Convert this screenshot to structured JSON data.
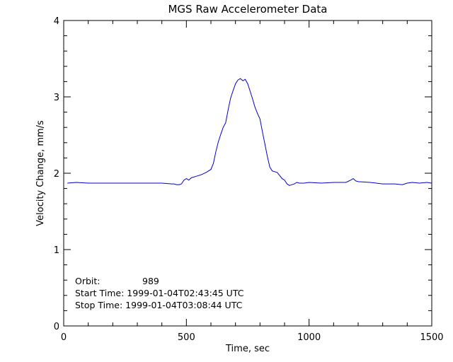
{
  "chart_data": {
    "type": "line",
    "title": "MGS Raw Accelerometer Data",
    "xlabel": "Time, sec",
    "ylabel": "Velocity Change, mm/s",
    "xlim": [
      0,
      1500
    ],
    "ylim": [
      0,
      4
    ],
    "xticks": [
      "0",
      "500",
      "1000",
      "1500"
    ],
    "yticks": [
      "0",
      "1",
      "2",
      "3",
      "4"
    ],
    "grid": false,
    "legend": "none",
    "colors": {
      "series": "#0000cc",
      "axes": "#000000"
    },
    "series": [
      {
        "x": [
          15,
          50,
          100,
          150,
          200,
          250,
          300,
          350,
          400,
          440,
          450,
          460,
          470,
          480,
          490,
          500,
          510,
          520,
          540,
          560,
          580,
          600,
          610,
          620,
          630,
          640,
          650,
          660,
          670,
          680,
          690,
          700,
          710,
          720,
          730,
          740,
          750,
          760,
          770,
          780,
          790,
          800,
          810,
          820,
          830,
          840,
          850,
          860,
          870,
          880,
          890,
          900,
          910,
          920,
          930,
          940,
          950,
          960,
          980,
          1000,
          1050,
          1100,
          1150,
          1170,
          1180,
          1190,
          1200,
          1250,
          1300,
          1320,
          1350,
          1380,
          1400,
          1420,
          1450,
          1480,
          1500
        ],
        "y": [
          1.87,
          1.88,
          1.87,
          1.87,
          1.87,
          1.87,
          1.87,
          1.87,
          1.87,
          1.86,
          1.86,
          1.85,
          1.85,
          1.86,
          1.91,
          1.93,
          1.91,
          1.94,
          1.96,
          1.98,
          2.01,
          2.05,
          2.13,
          2.28,
          2.41,
          2.51,
          2.6,
          2.66,
          2.83,
          2.98,
          3.08,
          3.17,
          3.22,
          3.24,
          3.21,
          3.23,
          3.17,
          3.07,
          2.97,
          2.86,
          2.78,
          2.71,
          2.54,
          2.38,
          2.22,
          2.08,
          2.03,
          2.02,
          2.01,
          1.97,
          1.93,
          1.91,
          1.86,
          1.84,
          1.85,
          1.86,
          1.88,
          1.87,
          1.87,
          1.88,
          1.87,
          1.88,
          1.88,
          1.91,
          1.93,
          1.9,
          1.89,
          1.88,
          1.86,
          1.86,
          1.86,
          1.85,
          1.87,
          1.88,
          1.87,
          1.88,
          1.87
        ]
      }
    ]
  },
  "annotations": {
    "orbit_label": "Orbit:",
    "orbit_value": "989",
    "start_time": "Start Time: 1999-01-04T02:43:45 UTC",
    "stop_time": "Stop Time: 1999-01-04T03:08:44 UTC"
  }
}
